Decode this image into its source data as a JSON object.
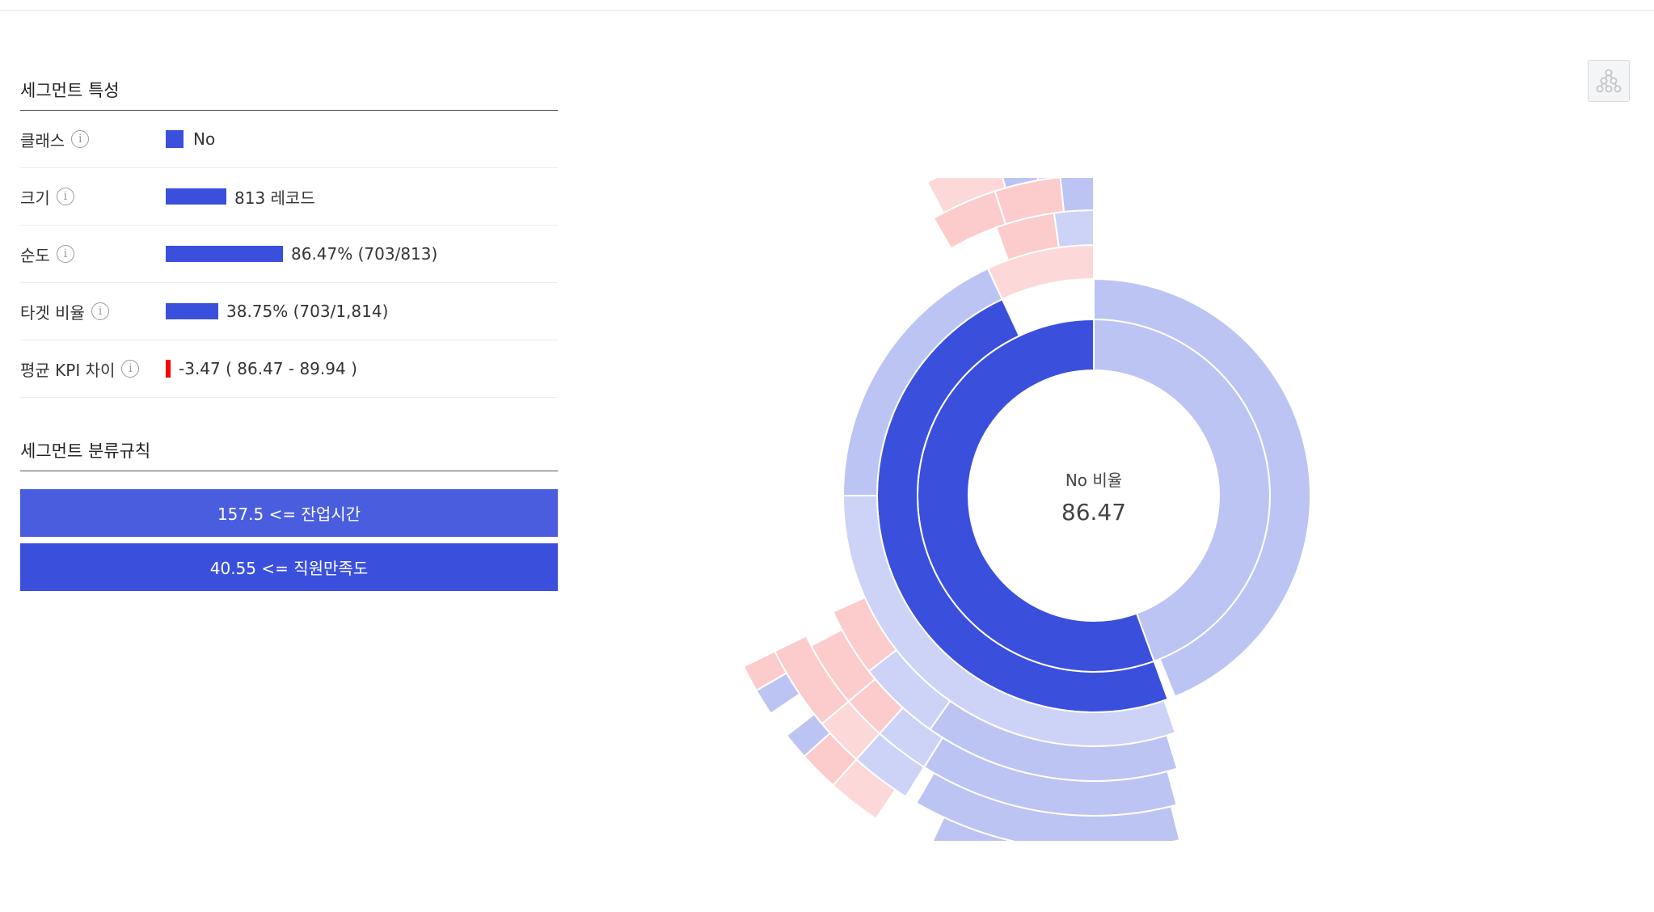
{
  "characteristics": {
    "title": "세그먼트 특성",
    "class": {
      "label": "클래스",
      "value": "No"
    },
    "size": {
      "label": "크기",
      "value": "813 레코드",
      "bar_fraction": 0.448
    },
    "purity": {
      "label": "순도",
      "value": "86.47% (703/813)",
      "bar_fraction": 0.8647
    },
    "target_ratio": {
      "label": "타겟 비율",
      "value": "38.75% (703/1,814)",
      "bar_fraction": 0.3875
    },
    "kpi_diff": {
      "label": "평균 KPI 차이",
      "value": "-3.47 ( 86.47 - 89.94 )"
    }
  },
  "rules": {
    "title": "세그먼트 분류규칙",
    "items": [
      "157.5 <= 잔업시간",
      "40.55 <= 직원만족도"
    ]
  },
  "chart_data": {
    "type": "sunburst",
    "center_label": "No 비율",
    "center_value": "86.47",
    "colors": {
      "selected": "#3b4fdd",
      "no": "#bcc4f3",
      "no_light": "#cdd3f6",
      "yes": "#fccbcb",
      "yes_light": "#fdd8d8"
    }
  },
  "toolbar": {
    "tree_icon": "tree-icon"
  }
}
